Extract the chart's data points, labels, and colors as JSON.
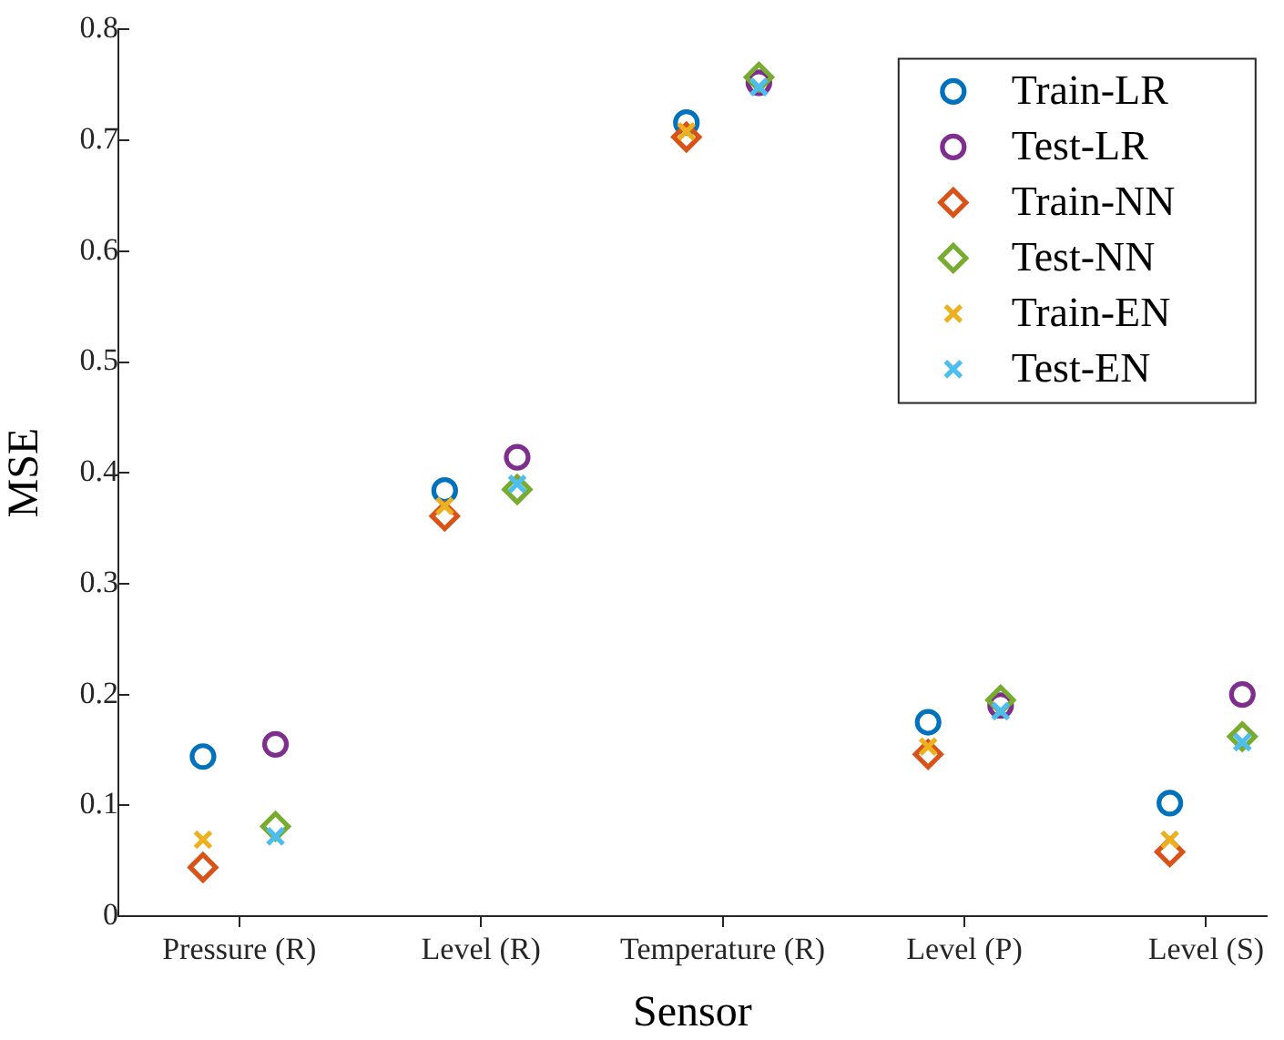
{
  "chart_data": {
    "type": "scatter",
    "xlabel": "Sensor",
    "ylabel": "MSE",
    "categories": [
      "Pressure (R)",
      "Level (R)",
      "Temperature (R)",
      "Level (P)",
      "Level (S)"
    ],
    "ylim": [
      0,
      0.8
    ],
    "yticks": [
      0,
      0.1,
      0.2,
      0.3,
      0.4,
      0.5,
      0.6,
      0.7,
      0.8
    ],
    "grid": false,
    "legend": "top right",
    "series": [
      {
        "name": "Train-LR",
        "color": "#0072bd",
        "marker": "circle",
        "values": [
          0.144,
          0.384,
          0.716,
          0.175,
          0.102
        ]
      },
      {
        "name": "Test-LR",
        "color": "#7e2f8e",
        "marker": "circle",
        "values": [
          0.155,
          0.414,
          0.752,
          0.19,
          0.2
        ]
      },
      {
        "name": "Train-NN",
        "color": "#d95319",
        "marker": "diamond",
        "values": [
          0.044,
          0.361,
          0.703,
          0.146,
          0.058
        ]
      },
      {
        "name": "Test-NN",
        "color": "#77ac30",
        "marker": "diamond",
        "values": [
          0.081,
          0.385,
          0.757,
          0.195,
          0.162
        ]
      },
      {
        "name": "Train-EN",
        "color": "#edb120",
        "marker": "cross",
        "values": [
          0.069,
          0.37,
          0.708,
          0.153,
          0.069
        ]
      },
      {
        "name": "Test-EN",
        "color": "#4dbeee",
        "marker": "cross",
        "values": [
          0.072,
          0.39,
          0.748,
          0.185,
          0.157
        ]
      }
    ]
  }
}
